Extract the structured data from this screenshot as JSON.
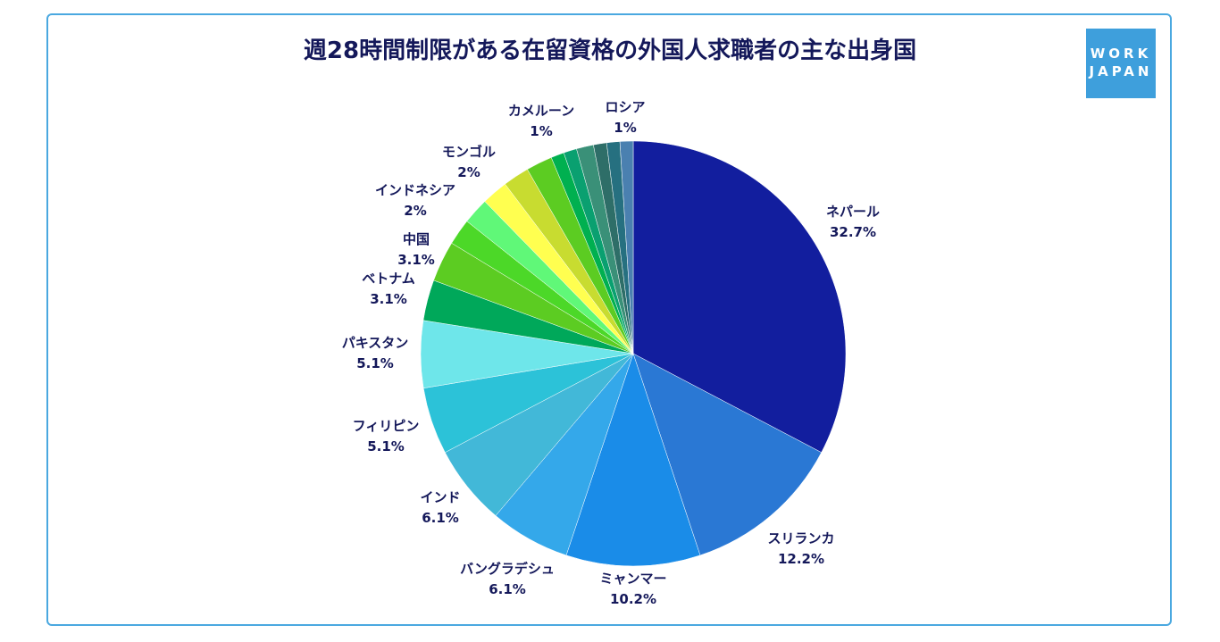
{
  "chart_data": {
    "type": "pie",
    "title": "週28時間制限がある在留資格の外国人求職者の主な出身国",
    "slices": [
      {
        "label": "ネパール",
        "value": 32.7,
        "text": "32.7%",
        "color": "#121e9e"
      },
      {
        "label": "スリランカ",
        "value": 12.2,
        "text": "12.2%",
        "color": "#2a78d4"
      },
      {
        "label": "ミャンマー",
        "value": 10.2,
        "text": "10.2%",
        "color": "#1a8ce8"
      },
      {
        "label": "バングラデシュ",
        "value": 6.1,
        "text": "6.1%",
        "color": "#34a8ea"
      },
      {
        "label": "インド",
        "value": 6.1,
        "text": "6.1%",
        "color": "#42b8d8"
      },
      {
        "label": "フィリピン",
        "value": 5.1,
        "text": "5.1%",
        "color": "#2cc2d8"
      },
      {
        "label": "パキスタン",
        "value": 5.1,
        "text": "5.1%",
        "color": "#6ee6ea"
      },
      {
        "label": "ベトナム",
        "value": 3.1,
        "text": "3.1%",
        "color": "#00a85a"
      },
      {
        "label": "中国",
        "value": 3.1,
        "text": "3.1%",
        "color": "#5ccc22"
      },
      {
        "label": "",
        "value": 2,
        "text": "",
        "color": "#4cd828"
      },
      {
        "label": "インドネシア",
        "value": 2,
        "text": "2%",
        "color": "#60f878"
      },
      {
        "label": "",
        "value": 2,
        "text": "",
        "color": "#ffff50"
      },
      {
        "label": "モンゴル",
        "value": 2,
        "text": "2%",
        "color": "#c8dc30"
      },
      {
        "label": "",
        "value": 2,
        "text": "",
        "color": "#5ccc22"
      },
      {
        "label": "",
        "value": 1,
        "text": "",
        "color": "#00b050"
      },
      {
        "label": "",
        "value": 1,
        "text": "",
        "color": "#0aa070"
      },
      {
        "label": "",
        "value": 1.3,
        "text": "",
        "color": "#3a9078"
      },
      {
        "label": "",
        "value": 1,
        "text": "",
        "color": "#2e6e68"
      },
      {
        "label": "カメルーン",
        "value": 1,
        "text": "1%",
        "color": "#267080"
      },
      {
        "label": "ロシア",
        "value": 1,
        "text": "1%",
        "color": "#4a80b0"
      }
    ]
  },
  "logo": {
    "line1": "WORK",
    "line2": "JAPAN"
  }
}
